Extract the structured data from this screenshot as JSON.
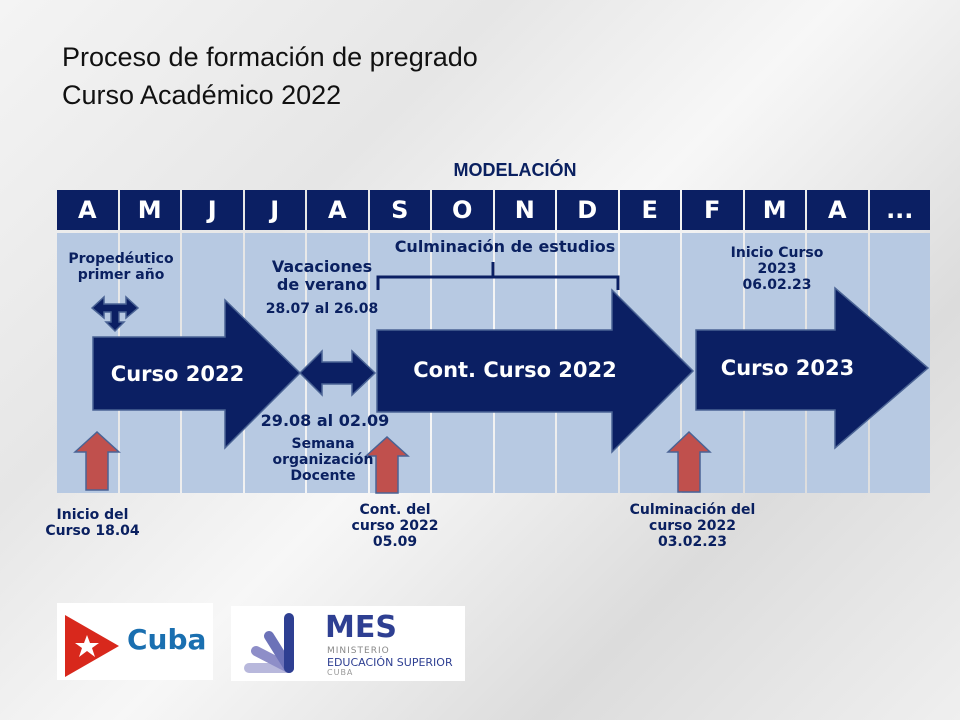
{
  "title": {
    "line1": "Proceso de formación de pregrado",
    "line2": "Curso Académico 2022"
  },
  "modelacion": "MODELACIÓN",
  "months": [
    "A",
    "M",
    "J",
    "J",
    "A",
    "S",
    "O",
    "N",
    "D",
    "E",
    "F",
    "M",
    "A",
    "..."
  ],
  "labels": {
    "propedeutico": "Propedéutico primer año",
    "vacaciones": "Vacaciones de verano",
    "vacaciones_fecha": "28.07 al 26.08",
    "culminacion_estudios": "Culminación de estudios",
    "inicio_2023": "Inicio Curso 2023 06.02.23",
    "semana_fecha": "29.08 al 02.09",
    "semana": "Semana organización Docente",
    "inicio_curso": "Inicio del Curso 18.04",
    "cont_curso": "Cont. del curso 2022 05.09",
    "culminacion_curso": "Culminación del curso 2022 03.02.23"
  },
  "arrows": {
    "curso2022": "Curso  2022",
    "cont2022": "Cont. Curso 2022",
    "curso2023": "Curso 2023"
  },
  "logos": {
    "cuba": "Cuba",
    "mes": "MES",
    "mes_line1": "MINISTERIO",
    "mes_line2": "EDUCACIÓN SUPERIOR",
    "mes_line3": "CUBA"
  },
  "colors": {
    "navy": "#0b1f63",
    "light": "#b7c9e2",
    "red": "#c0504d"
  }
}
